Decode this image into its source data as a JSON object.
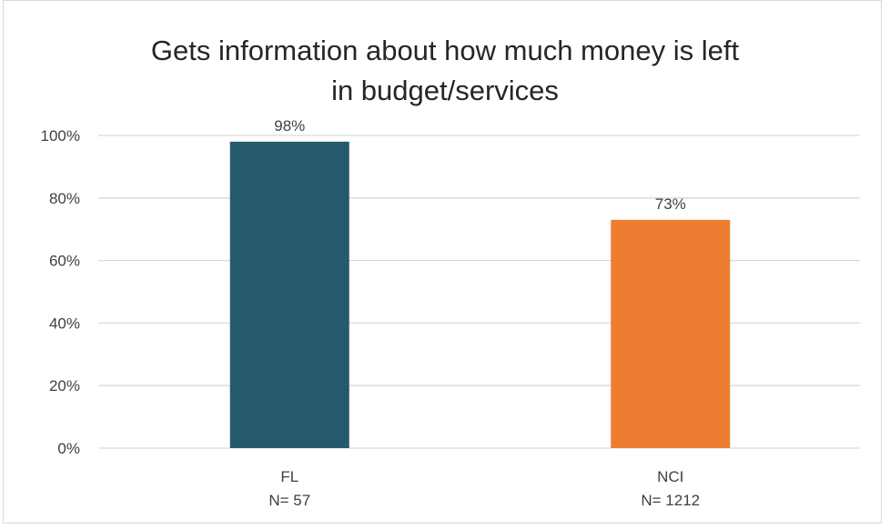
{
  "chart_data": {
    "type": "bar",
    "title_lines": [
      "Gets information about how much money is left",
      "in budget/services"
    ],
    "categories": [
      {
        "label": "FL",
        "sublabel": "N= 57"
      },
      {
        "label": "NCI",
        "sublabel": "N= 1212"
      }
    ],
    "values": [
      98,
      73
    ],
    "data_labels": [
      "98%",
      "73%"
    ],
    "colors": [
      "#245a6b",
      "#ed7d31"
    ],
    "ylim": [
      0,
      100
    ],
    "yticks": [
      0,
      20,
      40,
      60,
      80,
      100
    ],
    "ytick_labels": [
      "0%",
      "20%",
      "40%",
      "60%",
      "80%",
      "100%"
    ],
    "grid": true,
    "legend": "none"
  }
}
